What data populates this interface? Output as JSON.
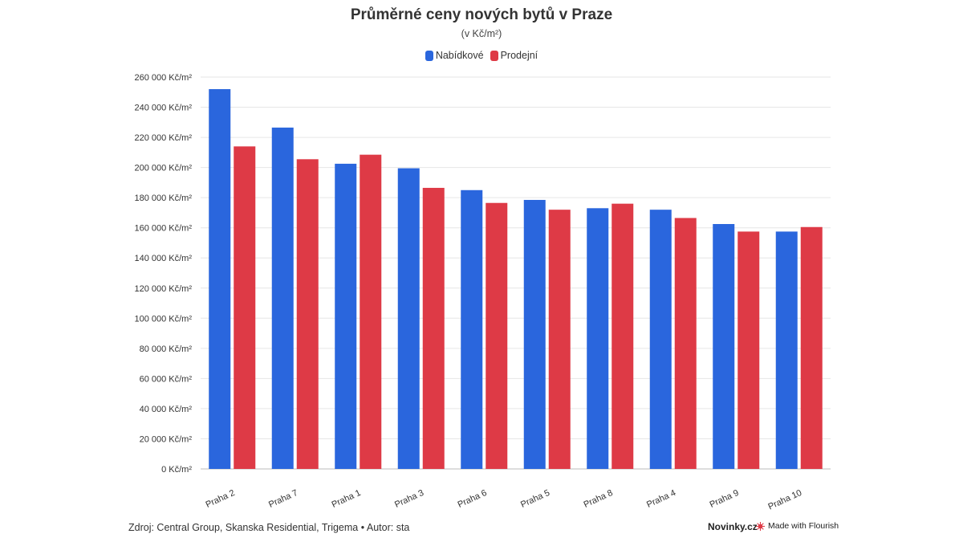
{
  "colors": {
    "offer": "#2a66dd",
    "sale": "#de3a46",
    "grid": "#e6e6e6",
    "axis": "#bbbbbb",
    "text": "#333333"
  },
  "footer": {
    "source": "Zdroj: Central Group, Skanska Residential, Trigema • Autor: sta",
    "brand": "Novinky.cz",
    "flourish": "Made with Flourish"
  },
  "chart_data": {
    "type": "bar",
    "title": "Průměrné ceny nových bytů v Praze",
    "subtitle": "(v Kč/m²)",
    "categories": [
      "Praha 2",
      "Praha 7",
      "Praha 1",
      "Praha 3",
      "Praha 6",
      "Praha 5",
      "Praha 8",
      "Praha 4",
      "Praha 9",
      "Praha 10"
    ],
    "series": [
      {
        "name": "Nabídkové",
        "values": [
          252000,
          226500,
          202500,
          199500,
          185000,
          178500,
          173000,
          172000,
          162500,
          157500
        ]
      },
      {
        "name": "Prodejní",
        "values": [
          214000,
          205500,
          208500,
          186500,
          176500,
          172000,
          176000,
          166500,
          157500,
          160500
        ]
      }
    ],
    "ylim": [
      0,
      260000
    ],
    "yticks": [
      0,
      20000,
      40000,
      60000,
      80000,
      100000,
      120000,
      140000,
      160000,
      180000,
      200000,
      220000,
      240000,
      260000
    ],
    "ytick_labels": [
      "0 Kč/m²",
      "20 000 Kč/m²",
      "40 000 Kč/m²",
      "60 000 Kč/m²",
      "80 000 Kč/m²",
      "100 000 Kč/m²",
      "120 000 Kč/m²",
      "140 000 Kč/m²",
      "160 000 Kč/m²",
      "180 000 Kč/m²",
      "200 000 Kč/m²",
      "220 000 Kč/m²",
      "240 000 Kč/m²",
      "260 000 Kč/m²"
    ],
    "grid": true,
    "legend": "top-center"
  }
}
